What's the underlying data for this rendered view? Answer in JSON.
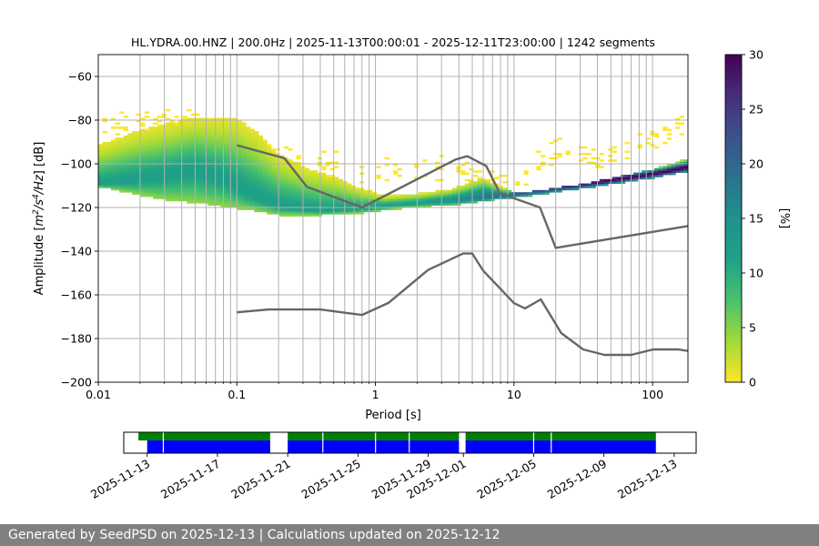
{
  "chart_data": {
    "type": "heatmap",
    "title": "HL.YDRA.00.HNZ | 200.0Hz | 2025-11-13T00:00:01 - 2025-12-11T23:00:00 | 1242 segments",
    "xlabel": "Period [s]",
    "ylabel_parts": [
      "Amplitude [",
      "m",
      "2",
      "/s",
      "4",
      "/Hz",
      "] [dB]"
    ],
    "x_scale": "log",
    "xlim": [
      0.01,
      180
    ],
    "ylim": [
      -200,
      -50
    ],
    "x_ticks": [
      {
        "value": 0.01,
        "label": "0.01"
      },
      {
        "value": 0.1,
        "label": "0.1"
      },
      {
        "value": 1,
        "label": "1"
      },
      {
        "value": 10,
        "label": "10"
      },
      {
        "value": 100,
        "label": "100"
      }
    ],
    "y_ticks": [
      {
        "value": -60,
        "label": "−60"
      },
      {
        "value": -80,
        "label": "−80"
      },
      {
        "value": -100,
        "label": "−100"
      },
      {
        "value": -120,
        "label": "−120"
      },
      {
        "value": -140,
        "label": "−140"
      },
      {
        "value": -160,
        "label": "−160"
      },
      {
        "value": -180,
        "label": "−180"
      },
      {
        "value": -200,
        "label": "−200"
      }
    ],
    "grid": true,
    "vertical_grid_periods": [
      0.02,
      0.03,
      0.04,
      0.05,
      0.06,
      0.07,
      0.08,
      0.09,
      0.2,
      0.3,
      0.4,
      0.5,
      0.6,
      0.7,
      0.8,
      0.9,
      2,
      3,
      4,
      5,
      6,
      7,
      8,
      9,
      20,
      30,
      40,
      50,
      60,
      70,
      80,
      90
    ],
    "colorbar": {
      "label": "[%]",
      "range": [
        0,
        30
      ],
      "ticks": [
        {
          "value": 0,
          "label": "0"
        },
        {
          "value": 5,
          "label": "5"
        },
        {
          "value": 10,
          "label": "10"
        },
        {
          "value": 15,
          "label": "15"
        },
        {
          "value": 20,
          "label": "20"
        },
        {
          "value": 25,
          "label": "25"
        },
        {
          "value": 30,
          "label": "30"
        }
      ],
      "colormap": "viridis_r"
    },
    "series": [
      {
        "key": "nhnm",
        "points": [
          [
            0.1,
            -91.5
          ],
          [
            0.22,
            -97.4
          ],
          [
            0.32,
            -110.5
          ],
          [
            0.8,
            -120
          ],
          [
            3.8,
            -98
          ],
          [
            4.6,
            -96.5
          ],
          [
            6.3,
            -101
          ],
          [
            7.9,
            -113.5
          ],
          [
            15.4,
            -120
          ],
          [
            20,
            -138.5
          ],
          [
            180,
            -128.5
          ]
        ]
      },
      {
        "key": "nlnm",
        "points": [
          [
            0.1,
            -168
          ],
          [
            0.17,
            -166.7
          ],
          [
            0.4,
            -166.7
          ],
          [
            0.8,
            -169.2
          ],
          [
            1.24,
            -163.7
          ],
          [
            2.4,
            -148.6
          ],
          [
            4.3,
            -141.1
          ],
          [
            5,
            -141.1
          ],
          [
            6,
            -149
          ],
          [
            10,
            -163.8
          ],
          [
            12,
            -166.2
          ],
          [
            15.6,
            -162.1
          ],
          [
            21.9,
            -177.5
          ],
          [
            31.6,
            -185
          ],
          [
            45,
            -187.5
          ],
          [
            70,
            -187.5
          ],
          [
            101,
            -185
          ],
          [
            154,
            -185
          ],
          [
            180,
            -185.7
          ]
        ]
      }
    ],
    "density": {
      "core_mode": [
        [
          0.01,
          -110
        ],
        [
          0.03,
          -106
        ],
        [
          0.05,
          -103
        ],
        [
          0.08,
          -107
        ],
        [
          0.13,
          -115
        ],
        [
          0.2,
          -120
        ],
        [
          0.4,
          -122
        ],
        [
          0.8,
          -121
        ],
        [
          1.5,
          -119
        ],
        [
          4,
          -117
        ],
        [
          10,
          -114.5
        ],
        [
          30,
          -110
        ],
        [
          100,
          -105
        ],
        [
          180,
          -102
        ]
      ],
      "low_edge": [
        [
          0.01,
          -111
        ],
        [
          0.03,
          -117
        ],
        [
          0.06,
          -119
        ],
        [
          0.13,
          -122
        ],
        [
          0.2,
          -124
        ],
        [
          0.4,
          -124
        ],
        [
          0.8,
          -123
        ],
        [
          1.5,
          -121
        ],
        [
          4,
          -119
        ],
        [
          10,
          -116
        ],
        [
          30,
          -112
        ],
        [
          100,
          -107
        ],
        [
          180,
          -104
        ]
      ],
      "high_edge": [
        [
          0.01,
          -92
        ],
        [
          0.02,
          -85
        ],
        [
          0.05,
          -79
        ],
        [
          0.1,
          -80
        ],
        [
          0.14,
          -86
        ],
        [
          0.2,
          -96
        ],
        [
          0.3,
          -102
        ],
        [
          0.5,
          -106
        ],
        [
          0.8,
          -112
        ],
        [
          1.2,
          -115
        ],
        [
          2,
          -114
        ],
        [
          3.5,
          -112
        ],
        [
          6,
          -107
        ],
        [
          10,
          -114
        ],
        [
          30,
          -110
        ],
        [
          100,
          -103
        ],
        [
          180,
          -98
        ]
      ],
      "scatter_high": [
        [
          0.01,
          -80
        ],
        [
          0.05,
          -77
        ],
        [
          0.2,
          -95
        ],
        [
          0.5,
          -98
        ],
        [
          1,
          -101
        ],
        [
          2,
          -101
        ],
        [
          4,
          -99
        ],
        [
          6,
          -106
        ],
        [
          10,
          -108
        ],
        [
          20,
          -91
        ],
        [
          40,
          -96
        ],
        [
          100,
          -86
        ],
        [
          180,
          -78
        ]
      ]
    },
    "timeline": {
      "xlim": [
        "2025-11-11T16:00",
        "2025-12-14T06:00"
      ],
      "labels": [
        "2025-11-13",
        "2025-11-17",
        "2025-11-21",
        "2025-11-25",
        "2025-11-29",
        "2025-12-01",
        "2025-12-05",
        "2025-12-09",
        "2025-12-13"
      ],
      "green_segments": [
        [
          "2025-11-12T12:00",
          "2025-11-20T00:00"
        ],
        [
          "2025-11-21T00:00",
          "2025-11-30T18:00"
        ],
        [
          "2025-12-01T03:00",
          "2025-12-11T23:00"
        ]
      ],
      "blue_segments": [
        [
          "2025-11-13T00:00",
          "2025-11-20T00:00"
        ],
        [
          "2025-11-21T00:00",
          "2025-11-30T18:00"
        ],
        [
          "2025-12-01T03:00",
          "2025-12-11T23:00"
        ]
      ],
      "gap_markers": [
        "2025-11-13T22:00",
        "2025-11-23T00:00",
        "2025-11-26T00:00",
        "2025-11-27T22:00",
        "2025-12-05T00:00",
        "2025-12-06T00:00"
      ],
      "colors": {
        "green": "#008000",
        "blue": "#0000ff"
      }
    },
    "colors": {
      "noise_model": "#666666",
      "grid": "#b0b0b0"
    }
  },
  "footer": {
    "text": "Generated by SeedPSD on 2025-12-13 | Calculations updated on 2025-12-12"
  }
}
